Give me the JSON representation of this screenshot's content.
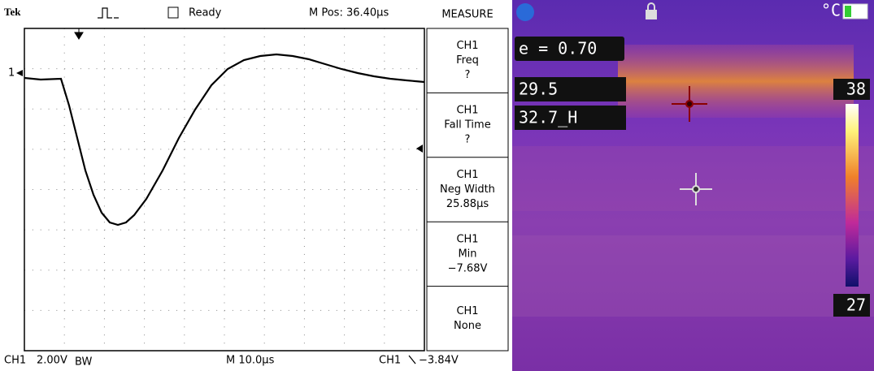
{
  "scope": {
    "brand": "Tek",
    "status": "Ready",
    "position": "M Pos: 36.40µs",
    "channel_marker": "1",
    "menu": {
      "title": "MEASURE",
      "items": [
        {
          "lines": [
            "CH1",
            "Freq",
            "?"
          ]
        },
        {
          "lines": [
            "CH1",
            "Fall Time",
            "?"
          ]
        },
        {
          "lines": [
            "CH1",
            "Neg Width",
            "25.88µs"
          ]
        },
        {
          "lines": [
            "CH1",
            "Min",
            "−7.68V"
          ]
        },
        {
          "lines": [
            "CH1",
            "None"
          ]
        }
      ]
    },
    "footer": {
      "channel": "CH1",
      "scale": "2.00V",
      "bandwidth": "BW",
      "timebase": "M 10.0µs",
      "trigger_source": "CH1",
      "trigger_level": "−3.84V"
    }
  },
  "thermal": {
    "emissivity": "e = 0.70",
    "spot_temp": "29.5",
    "max_temp": "32.7_H",
    "unit": "°C",
    "scale_max": "38",
    "scale_min": "27"
  }
}
